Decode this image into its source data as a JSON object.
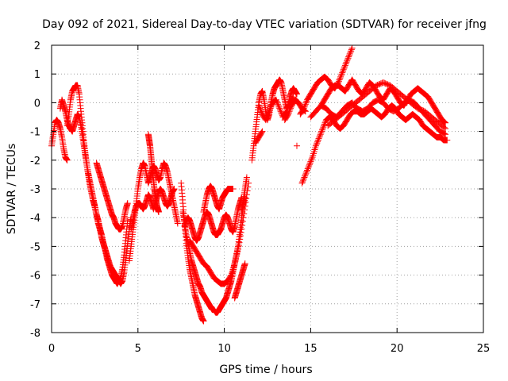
{
  "chart_data": {
    "type": "scatter",
    "title": "Day 092 of 2021, Sidereal Day-to-day VTEC variation (SDTVAR) for receiver jfng",
    "xlabel": "GPS time / hours",
    "ylabel": "SDTVAR / TECUs",
    "xlim": [
      0,
      25
    ],
    "ylim": [
      -8,
      2
    ],
    "xticks": [
      0,
      5,
      10,
      15,
      20,
      25
    ],
    "yticks": [
      -8,
      -7,
      -6,
      -5,
      -4,
      -3,
      -2,
      -1,
      0,
      1,
      2
    ],
    "grid": true,
    "marker": "plus",
    "color": "#ff0000",
    "series": [
      {
        "x": [
          0.0,
          0.1,
          0.2,
          0.3,
          0.4,
          0.5,
          0.6,
          0.7,
          0.8,
          0.9
        ],
        "y": [
          -1.5,
          -1.1,
          -0.7,
          -0.6,
          -0.7,
          -0.9,
          -1.2,
          -1.6,
          -1.9,
          -2.0
        ]
      },
      {
        "x": [
          0.9,
          1.0,
          1.1,
          1.2,
          1.3,
          1.4,
          1.5,
          1.6,
          1.7,
          1.8,
          1.9,
          2.0,
          2.1,
          2.2,
          2.3,
          2.4,
          2.5,
          2.6,
          2.7,
          2.8,
          2.9,
          3.0,
          3.1,
          3.2,
          3.3,
          3.4,
          3.5,
          3.6,
          3.7,
          3.8,
          3.9,
          4.0,
          4.1,
          4.2,
          4.3,
          4.4
        ],
        "y": [
          -0.8,
          -0.4,
          0.1,
          0.4,
          0.5,
          0.6,
          0.6,
          0.3,
          -0.3,
          -0.9,
          -1.5,
          -2.0,
          -2.4,
          -2.8,
          -3.1,
          -3.4,
          -3.6,
          -3.9,
          -4.1,
          -4.4,
          -4.6,
          -4.9,
          -5.1,
          -5.4,
          -5.6,
          -5.8,
          -6.0,
          -6.1,
          -6.2,
          -6.3,
          -6.2,
          -6.1,
          -5.8,
          -5.3,
          -4.7,
          -4.1
        ]
      },
      {
        "x": [
          0.5,
          0.6,
          0.7,
          0.8,
          0.9,
          1.0,
          1.1,
          1.2,
          1.3,
          1.4,
          1.5,
          1.6,
          1.7,
          1.8,
          1.9,
          2.0,
          2.1,
          2.2,
          2.3,
          2.4,
          2.5,
          2.6,
          2.7,
          2.8,
          2.9,
          3.0,
          3.1,
          3.2,
          3.3,
          3.4,
          3.5,
          3.6,
          3.7,
          3.8,
          3.9,
          4.0,
          4.1,
          4.2,
          4.3,
          4.4,
          4.5,
          4.6
        ],
        "y": [
          -0.2,
          0.1,
          -0.1,
          -0.3,
          -0.6,
          -0.8,
          -0.9,
          -1.0,
          -0.8,
          -0.6,
          -0.4,
          -0.5,
          -0.8,
          -1.2,
          -1.6,
          -2.0,
          -2.4,
          -2.7,
          -3.0,
          -3.3,
          -3.6,
          -3.9,
          -4.2,
          -4.4,
          -4.7,
          -4.9,
          -5.1,
          -5.3,
          -5.5,
          -5.7,
          -5.8,
          -5.9,
          -6.0,
          -6.1,
          -6.2,
          -6.3,
          -6.2,
          -5.9,
          -5.4,
          -4.9,
          -4.4,
          -4.0
        ]
      },
      {
        "x": [
          2.6,
          2.7,
          2.8,
          2.9,
          3.0,
          3.1,
          3.2,
          3.3,
          3.4,
          3.5,
          3.6,
          3.7,
          3.8,
          3.9,
          4.0,
          4.1,
          4.2,
          4.3,
          4.4
        ],
        "y": [
          -2.1,
          -2.3,
          -2.5,
          -2.7,
          -2.9,
          -3.1,
          -3.3,
          -3.5,
          -3.7,
          -3.9,
          -4.0,
          -4.2,
          -4.3,
          -4.4,
          -4.4,
          -4.3,
          -4.0,
          -3.7,
          -3.5
        ]
      },
      {
        "x": [
          4.5,
          4.6,
          4.7,
          4.8,
          4.9,
          5.0,
          5.1,
          5.2,
          5.3,
          5.4,
          5.5,
          5.6,
          5.7,
          5.8,
          5.9,
          6.0,
          6.1,
          6.2,
          6.3,
          6.4,
          6.5,
          6.6,
          6.7,
          6.8,
          6.9,
          7.0,
          7.1,
          7.2,
          7.3
        ],
        "y": [
          -5.5,
          -5.0,
          -4.5,
          -4.0,
          -3.5,
          -3.0,
          -2.6,
          -2.3,
          -2.1,
          -2.2,
          -2.5,
          -2.8,
          -2.6,
          -2.4,
          -2.2,
          -2.3,
          -2.5,
          -2.7,
          -2.6,
          -2.3,
          -2.1,
          -2.2,
          -2.4,
          -2.7,
          -3.0,
          -3.3,
          -3.6,
          -3.9,
          -4.2
        ]
      },
      {
        "x": [
          4.6,
          4.7,
          4.8,
          4.9,
          5.0,
          5.1,
          5.2,
          5.3,
          5.4,
          5.5,
          5.6,
          5.7,
          5.8,
          5.9,
          6.0,
          6.1,
          6.2,
          6.3,
          6.4,
          6.5,
          6.6,
          6.7,
          6.8,
          6.9,
          7.0,
          7.1
        ],
        "y": [
          -4.4,
          -4.1,
          -3.8,
          -3.6,
          -3.5,
          -3.5,
          -3.6,
          -3.7,
          -3.6,
          -3.4,
          -3.2,
          -3.3,
          -3.5,
          -3.7,
          -3.5,
          -3.3,
          -3.1,
          -3.0,
          -3.1,
          -3.3,
          -3.5,
          -3.6,
          -3.5,
          -3.3,
          -3.1,
          -3.0
        ]
      },
      {
        "x": [
          5.6,
          5.65,
          5.7,
          5.75,
          5.8,
          5.85,
          5.9,
          5.95,
          6.0,
          6.05,
          6.1,
          6.15,
          6.2
        ],
        "y": [
          -1.1,
          -1.3,
          -1.5,
          -1.8,
          -2.1,
          -2.4,
          -2.7,
          -3.0,
          -3.2,
          -3.4,
          -3.6,
          -3.7,
          -3.8
        ]
      },
      {
        "x": [
          7.5,
          7.6,
          7.7,
          7.8,
          7.9,
          8.0,
          8.1,
          8.2,
          8.3,
          8.4,
          8.5,
          8.6,
          8.7,
          8.8
        ],
        "y": [
          -2.8,
          -3.5,
          -4.2,
          -4.9,
          -5.4,
          -5.8,
          -6.1,
          -6.4,
          -6.7,
          -6.9,
          -7.1,
          -7.3,
          -7.5,
          -7.6
        ]
      },
      {
        "x": [
          7.6,
          7.7,
          7.8,
          7.9,
          8.0,
          8.1,
          8.2,
          8.3,
          8.4,
          8.5,
          8.6,
          8.7,
          8.8,
          8.9,
          9.0,
          9.1,
          9.2,
          9.3,
          9.4,
          9.5,
          9.6,
          9.7,
          9.8,
          9.9,
          10.0,
          10.1,
          10.2,
          10.3,
          10.4,
          10.5,
          10.6,
          10.7,
          10.8,
          10.9,
          11.0,
          11.1,
          11.2
        ],
        "y": [
          -3.8,
          -4.2,
          -4.6,
          -4.9,
          -5.2,
          -5.5,
          -5.7,
          -5.9,
          -6.1,
          -6.3,
          -6.4,
          -6.6,
          -6.7,
          -6.8,
          -6.9,
          -7.0,
          -7.1,
          -7.2,
          -7.2,
          -7.3,
          -7.3,
          -7.2,
          -7.1,
          -7.0,
          -6.9,
          -6.8,
          -6.6,
          -6.4,
          -6.2,
          -5.9,
          -5.6,
          -5.3,
          -5.0,
          -4.5,
          -4.0,
          -3.6,
          -3.3
        ]
      },
      {
        "x": [
          7.7,
          7.8,
          7.9,
          8.0,
          8.1,
          8.2,
          8.3,
          8.4,
          8.5,
          8.6,
          8.7,
          8.8,
          8.9,
          9.0,
          9.1,
          9.2,
          9.3,
          9.4,
          9.5,
          9.6,
          9.7,
          9.8,
          9.9,
          10.0,
          10.1,
          10.2,
          10.3,
          10.4,
          10.5,
          10.6,
          10.7,
          10.8,
          10.9,
          11.0
        ],
        "y": [
          -4.3,
          -4.1,
          -4.0,
          -4.1,
          -4.3,
          -4.5,
          -4.7,
          -4.8,
          -4.7,
          -4.5,
          -4.3,
          -4.1,
          -3.9,
          -3.8,
          -3.9,
          -4.1,
          -4.3,
          -4.5,
          -4.6,
          -4.6,
          -4.5,
          -4.4,
          -4.2,
          -4.0,
          -3.9,
          -4.0,
          -4.2,
          -4.4,
          -4.5,
          -4.3,
          -4.0,
          -3.7,
          -3.5,
          -3.3
        ]
      },
      {
        "x": [
          8.0,
          8.2,
          8.4,
          8.6,
          8.8,
          9.0,
          9.2,
          9.4,
          9.6,
          9.8,
          10.0,
          10.2,
          10.4,
          10.6,
          10.8,
          11.0,
          11.2,
          11.4
        ],
        "y": [
          -4.8,
          -5.0,
          -5.2,
          -5.4,
          -5.6,
          -5.7,
          -5.9,
          -6.1,
          -6.2,
          -6.3,
          -6.3,
          -6.2,
          -6.0,
          -5.6,
          -5.1,
          -4.4,
          -3.6,
          -2.8
        ]
      },
      {
        "x": [
          8.8,
          8.9,
          9.0,
          9.1,
          9.2,
          9.3,
          9.4,
          9.5,
          9.6,
          9.7,
          9.8,
          9.9,
          10.0,
          10.1,
          10.2,
          10.3,
          10.4,
          10.5
        ],
        "y": [
          -3.8,
          -3.5,
          -3.2,
          -3.0,
          -2.9,
          -3.0,
          -3.2,
          -3.4,
          -3.6,
          -3.7,
          -3.5,
          -3.3,
          -3.2,
          -3.1,
          -3.0,
          -3.0,
          -3.0,
          -3.0
        ]
      },
      {
        "x": [
          10.6,
          10.7,
          10.8,
          10.9,
          11.0,
          11.1,
          11.2
        ],
        "y": [
          -6.8,
          -6.6,
          -6.4,
          -6.2,
          -6.0,
          -5.8,
          -5.6
        ]
      },
      {
        "x": [
          11.0,
          11.1,
          11.2,
          11.3
        ],
        "y": [
          -3.8,
          -3.4,
          -3.0,
          -2.6
        ]
      },
      {
        "x": [
          11.6,
          11.7,
          11.8,
          11.9,
          12.0,
          12.1,
          12.2,
          12.3,
          12.4,
          12.5,
          12.6,
          12.7,
          12.8,
          12.9,
          13.0,
          13.1,
          13.2,
          13.3,
          13.4,
          13.5,
          13.6,
          13.7,
          13.8,
          13.9,
          14.0,
          14.1,
          14.2
        ],
        "y": [
          -2.0,
          -1.5,
          -1.0,
          -0.5,
          0.0,
          0.3,
          0.4,
          0.1,
          -0.3,
          -0.6,
          -0.4,
          0.0,
          0.3,
          0.5,
          0.6,
          0.7,
          0.8,
          0.7,
          0.4,
          0.1,
          -0.2,
          -0.1,
          0.2,
          0.4,
          0.5,
          0.4,
          0.3
        ]
      },
      {
        "x": [
          12.0,
          12.2,
          12.4,
          12.6,
          12.8,
          13.0,
          13.2,
          13.4,
          13.6,
          13.8,
          14.0
        ],
        "y": [
          -0.1,
          -0.4,
          -0.6,
          -0.3,
          0.0,
          0.1,
          -0.2,
          -0.5,
          -0.3,
          0.0,
          0.2
        ]
      },
      {
        "x": [
          11.8,
          12.0,
          12.2
        ],
        "y": [
          -1.4,
          -1.2,
          -1.0
        ]
      },
      {
        "x": [
          14.5,
          14.7,
          14.9,
          15.1,
          15.3,
          15.5,
          15.7,
          15.9,
          16.1,
          16.3,
          16.5,
          16.7,
          16.9,
          17.1,
          17.3,
          17.5,
          17.7,
          17.9,
          18.1,
          18.3,
          18.5,
          18.7,
          18.9,
          19.1,
          19.3,
          19.5,
          19.7,
          19.9,
          20.1,
          20.3,
          20.5,
          20.7,
          20.9,
          21.1,
          21.3,
          21.5,
          21.7,
          21.9,
          22.1,
          22.3,
          22.5,
          22.7,
          22.9
        ],
        "y": [
          -2.8,
          -2.5,
          -2.2,
          -1.9,
          -1.5,
          -1.2,
          -0.9,
          -0.6,
          -0.5,
          -0.6,
          -0.8,
          -0.9,
          -0.8,
          -0.6,
          -0.4,
          -0.3,
          -0.3,
          -0.4,
          -0.4,
          -0.3,
          -0.2,
          -0.3,
          -0.4,
          -0.5,
          -0.4,
          -0.2,
          -0.1,
          -0.2,
          -0.4,
          -0.5,
          -0.6,
          -0.5,
          -0.4,
          -0.5,
          -0.6,
          -0.8,
          -0.9,
          -1.0,
          -1.1,
          -1.2,
          -1.2,
          -1.3,
          -1.3
        ]
      },
      {
        "x": [
          14.4,
          14.6,
          14.8,
          15.0,
          15.2,
          15.4,
          15.6,
          15.8,
          16.0,
          16.2,
          16.4,
          16.6,
          16.8,
          17.0,
          17.2,
          17.4
        ],
        "y": [
          -0.4,
          -0.2,
          0.1,
          0.3,
          0.5,
          0.7,
          0.8,
          0.9,
          0.8,
          0.6,
          0.5,
          0.7,
          1.0,
          1.3,
          1.6,
          1.9
        ]
      },
      {
        "x": [
          15.6,
          15.8,
          16.0,
          16.2,
          16.4,
          16.6,
          16.8,
          17.0,
          17.2,
          17.4,
          17.6,
          17.8,
          18.0,
          18.2,
          18.4,
          18.6,
          18.8,
          19.0,
          19.2,
          19.4,
          19.6,
          19.8,
          20.0,
          20.2,
          20.4,
          20.6,
          20.8,
          21.0,
          21.2,
          21.4,
          21.6,
          21.8,
          22.0,
          22.2,
          22.4,
          22.6,
          22.8
        ],
        "y": [
          -0.1,
          0.1,
          0.3,
          0.5,
          0.6,
          0.6,
          0.5,
          0.4,
          0.6,
          0.8,
          0.6,
          0.4,
          0.3,
          0.5,
          0.7,
          0.6,
          0.4,
          0.2,
          0.1,
          0.3,
          0.5,
          0.4,
          0.2,
          0.0,
          -0.1,
          0.1,
          0.3,
          0.4,
          0.5,
          0.4,
          0.3,
          0.2,
          0.0,
          -0.2,
          -0.4,
          -0.6,
          -0.7
        ]
      },
      {
        "x": [
          15.0,
          15.3,
          15.6,
          15.9,
          16.2,
          16.5,
          16.8,
          17.1,
          17.4,
          17.7,
          18.0,
          18.3,
          18.6,
          18.9,
          19.2,
          19.5,
          19.8,
          20.1,
          20.4,
          20.7,
          21.0,
          21.3,
          21.6,
          21.9,
          22.2,
          22.5,
          22.8
        ],
        "y": [
          -0.5,
          -0.3,
          -0.1,
          -0.2,
          -0.4,
          -0.5,
          -0.3,
          -0.1,
          0.0,
          -0.2,
          -0.3,
          -0.2,
          0.0,
          0.1,
          0.0,
          -0.2,
          -0.3,
          -0.2,
          0.0,
          0.1,
          0.0,
          -0.2,
          -0.4,
          -0.6,
          -0.8,
          -1.0,
          -1.1
        ]
      },
      {
        "x": [
          13.5,
          13.7,
          13.9,
          14.1,
          14.3,
          14.5,
          14.7
        ],
        "y": [
          -0.6,
          -0.4,
          -0.1,
          0.1,
          0.0,
          -0.2,
          -0.3
        ]
      },
      {
        "x": [
          14.2
        ],
        "y": [
          -1.5
        ]
      },
      {
        "x": [
          16.0,
          16.4,
          16.8,
          17.2,
          17.6,
          18.0,
          18.4,
          18.8,
          19.2,
          19.6,
          20.0,
          20.4,
          20.8,
          21.2,
          21.6,
          22.0,
          22.4,
          22.8
        ],
        "y": [
          -0.8,
          -0.6,
          -0.4,
          -0.2,
          0.0,
          0.2,
          0.4,
          0.6,
          0.7,
          0.6,
          0.4,
          0.2,
          0.0,
          -0.2,
          -0.3,
          -0.5,
          -0.7,
          -0.9
        ]
      }
    ]
  }
}
